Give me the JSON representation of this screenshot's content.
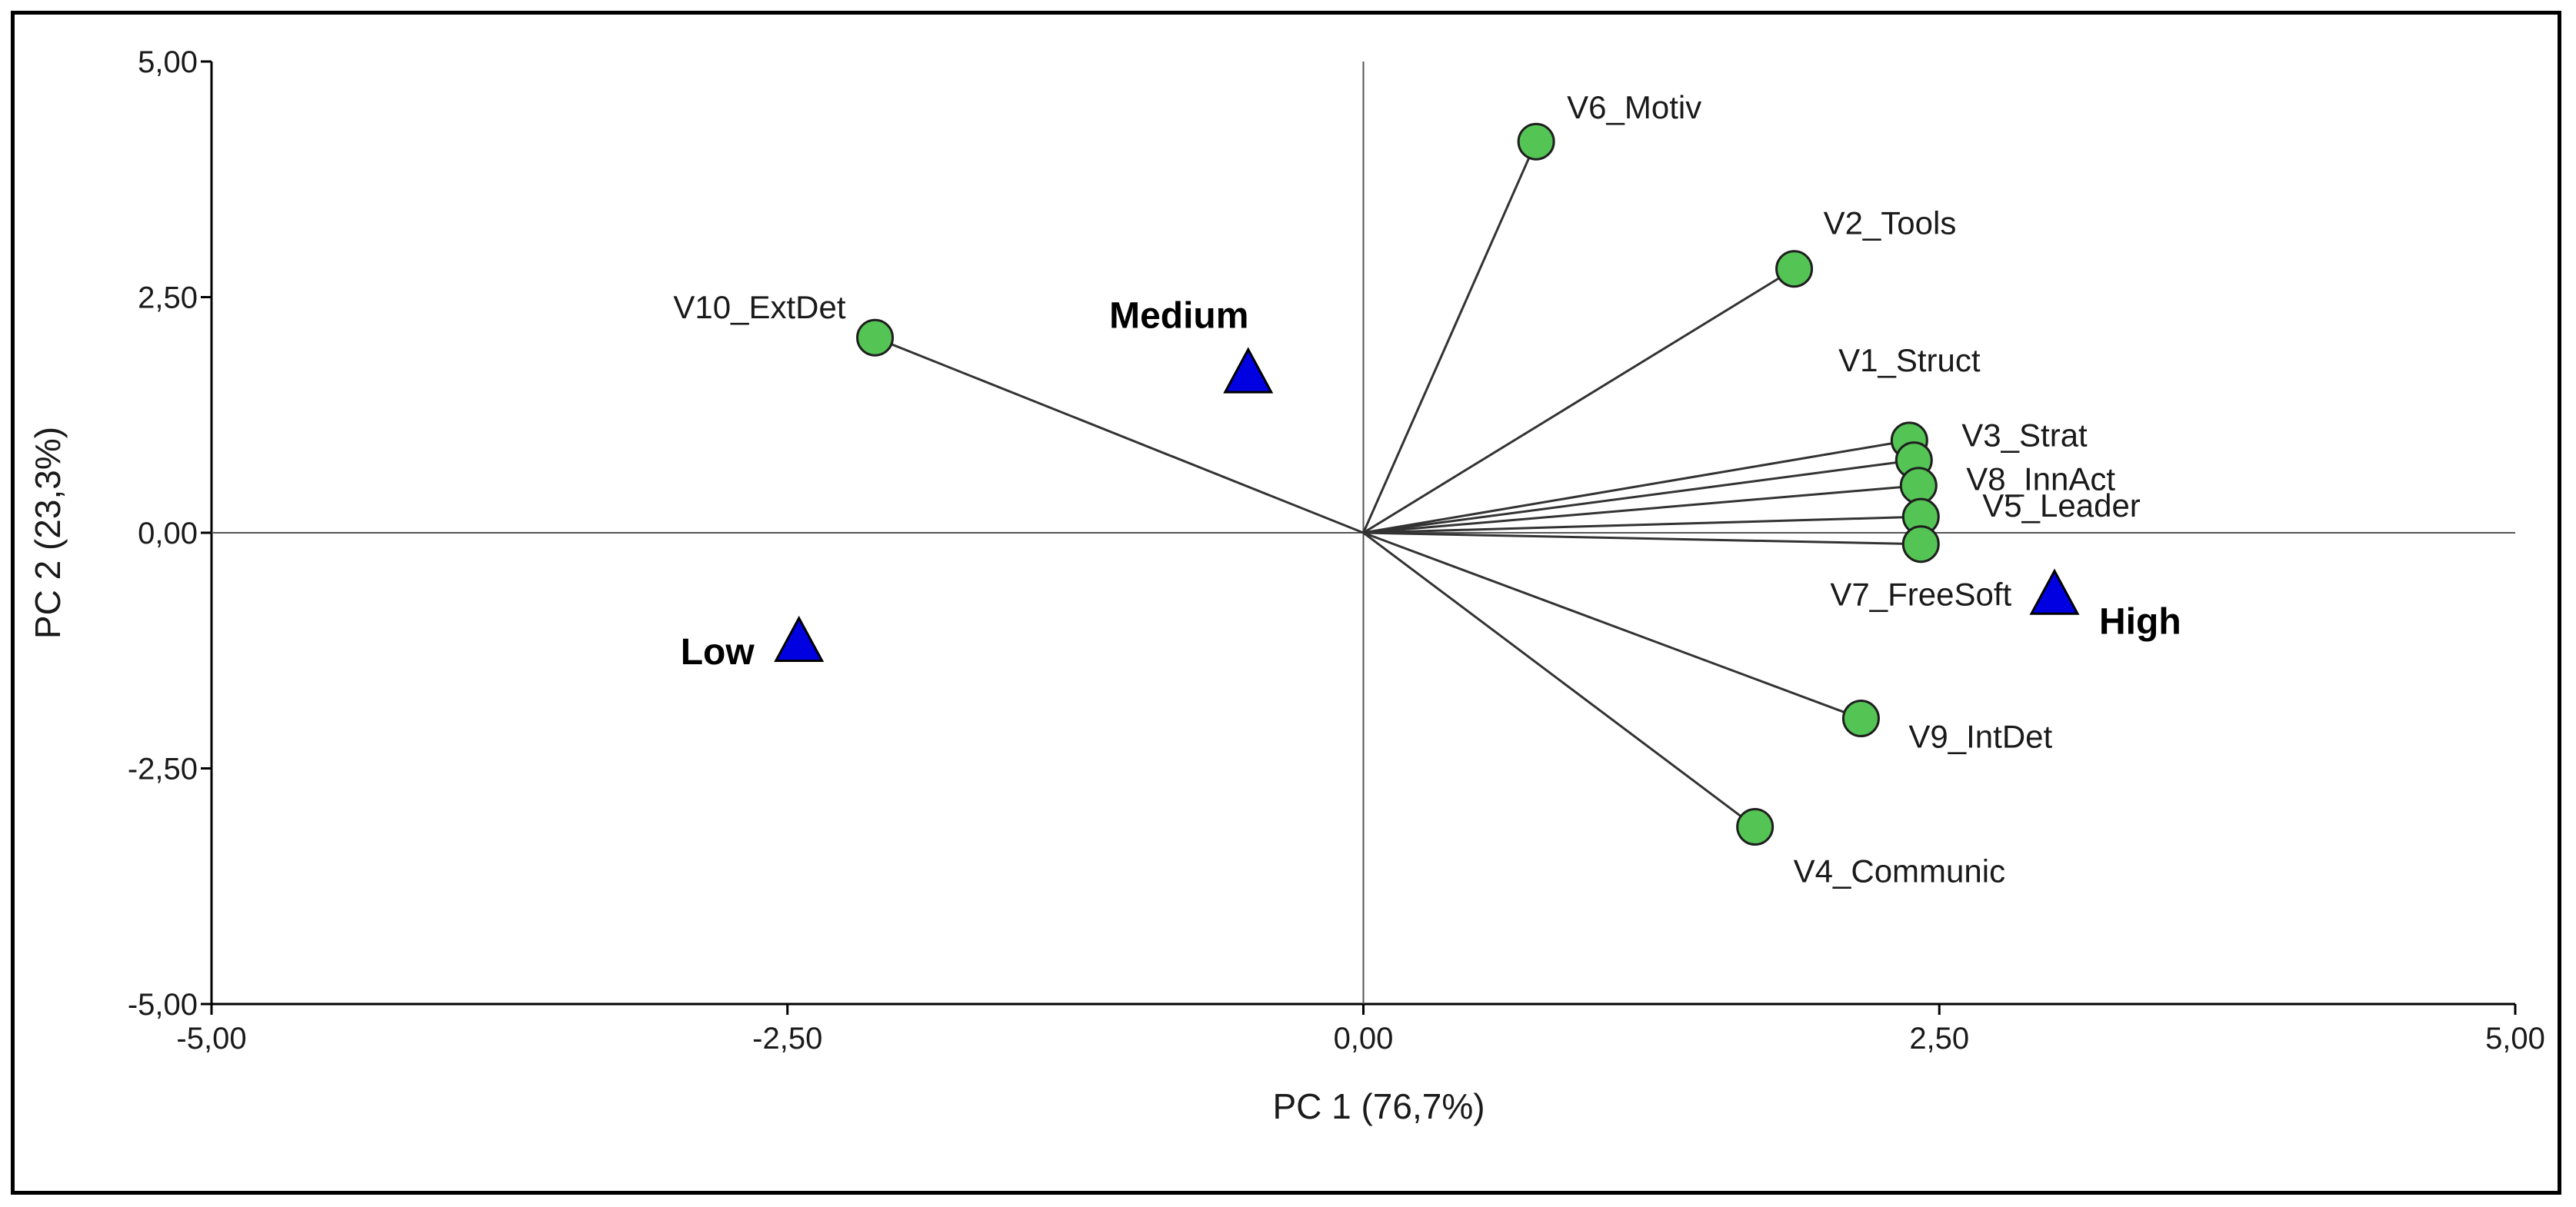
{
  "chart_data": {
    "type": "scatter",
    "title": "",
    "xlabel": "PC 1 (76,7%)",
    "ylabel": "PC 2 (23,3%)",
    "xlim": [
      -5,
      5
    ],
    "ylim": [
      -5,
      5
    ],
    "xticks": [
      "-5,00",
      "-2,50",
      "0,00",
      "2,50",
      "5,00"
    ],
    "yticks": [
      "5,00",
      "2,50",
      "0,00",
      "-2,50",
      "-5,00"
    ],
    "variables": [
      {
        "name": "V6_Motiv",
        "x": 0.75,
        "y": 4.15
      },
      {
        "name": "V2_Tools",
        "x": 1.87,
        "y": 2.8
      },
      {
        "name": "V10_ExtDet",
        "x": -2.12,
        "y": 2.07
      },
      {
        "name": "V1_Struct",
        "x": 2.37,
        "y": 0.98
      },
      {
        "name": "V3_Strat",
        "x": 2.39,
        "y": 0.77
      },
      {
        "name": "V8_InnAct",
        "x": 2.41,
        "y": 0.5
      },
      {
        "name": "V5_Leader",
        "x": 2.42,
        "y": 0.17
      },
      {
        "name": "V7_FreeSoft",
        "x": 2.42,
        "y": -0.12
      },
      {
        "name": "V9_IntDet",
        "x": 2.16,
        "y": -1.97
      },
      {
        "name": "V4_Communic",
        "x": 1.7,
        "y": -3.12
      }
    ],
    "groups": [
      {
        "name": "Medium",
        "x": -0.5,
        "y": 1.7
      },
      {
        "name": "Low",
        "x": -2.45,
        "y": -1.15
      },
      {
        "name": "High",
        "x": 3.0,
        "y": -0.65
      }
    ],
    "colors": {
      "variable_marker": "#54c454",
      "group_marker": "#0000e0",
      "lines": "#333333"
    }
  }
}
